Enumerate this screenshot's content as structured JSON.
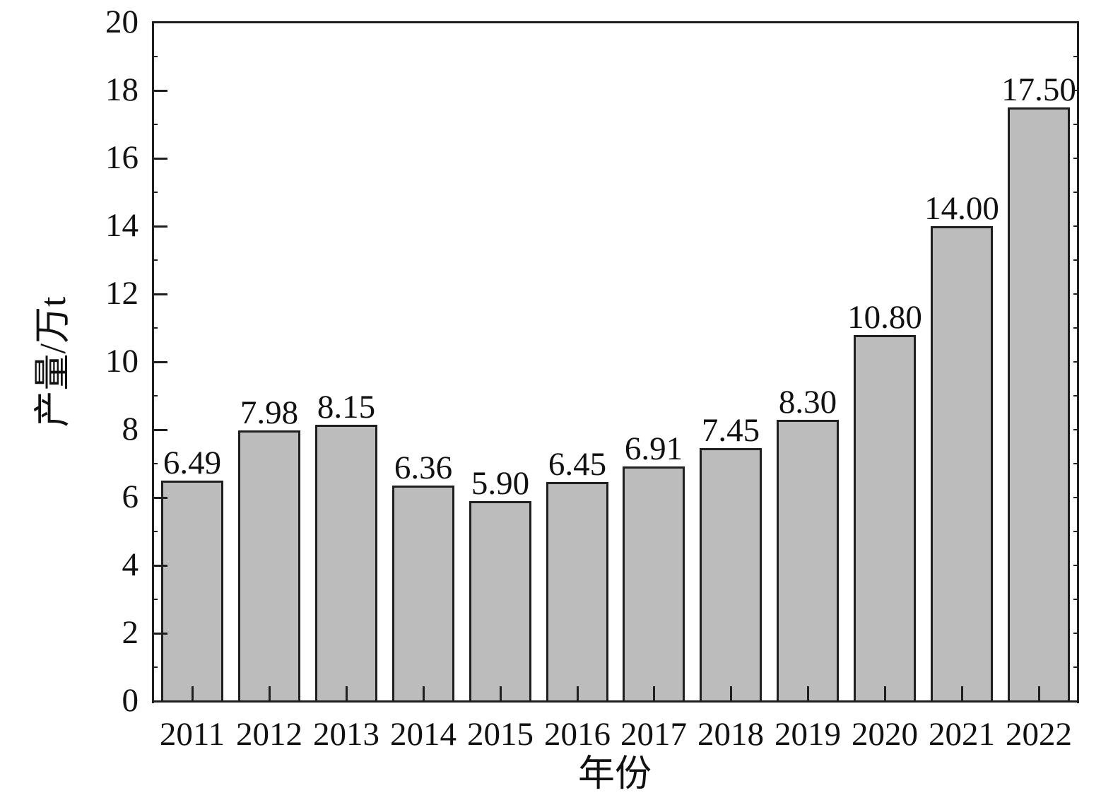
{
  "figure": {
    "background": "#ffffff"
  },
  "chart_data": {
    "type": "bar",
    "title": "",
    "xlabel": "年份",
    "ylabel": "产量/万t",
    "categories": [
      "2011",
      "2012",
      "2013",
      "2014",
      "2015",
      "2016",
      "2017",
      "2018",
      "2019",
      "2020",
      "2021",
      "2022"
    ],
    "values": [
      6.49,
      7.98,
      8.15,
      6.36,
      5.9,
      6.45,
      6.91,
      7.45,
      8.3,
      10.8,
      14.0,
      17.5
    ],
    "bar_value_labels": [
      "6.49",
      "7.98",
      "8.15",
      "6.36",
      "5.90",
      "6.45",
      "6.91",
      "7.45",
      "8.30",
      "10.80",
      "14.00",
      "17.50"
    ],
    "ylim": [
      0,
      20
    ],
    "ytick_interval": 2,
    "ytick_minor_interval": 1,
    "ytick_labels": [
      "0",
      "2",
      "4",
      "6",
      "8",
      "10",
      "12",
      "14",
      "16",
      "18",
      "20"
    ],
    "grid": false,
    "legend": "none",
    "tick_direction": "in",
    "bar_fill_color": "#bcbcbc",
    "bar_border_color": "#1f1f1f",
    "axis_color": "#1f1f1f",
    "text_color": "#111111"
  }
}
